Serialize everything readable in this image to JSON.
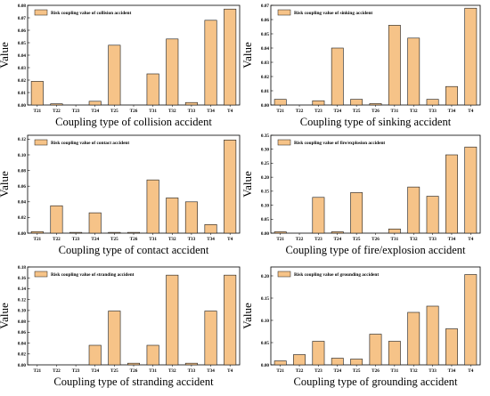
{
  "style": {
    "bar_fill": "#f6c388",
    "bar_stroke": "#1a1a1a",
    "axis_color": "#000000",
    "legend_fill": "#f6c388"
  },
  "chart_data": [
    {
      "type": "bar",
      "categories": [
        "T21",
        "T22",
        "T23",
        "T24",
        "T25",
        "T26",
        "T31",
        "T32",
        "T33",
        "T34",
        "T4"
      ],
      "values": [
        0.019,
        0.001,
        0,
        0.003,
        0.048,
        0,
        0.025,
        0.053,
        0.002,
        0.068,
        0.077
      ],
      "legend": "Risk coupling value of collision accident",
      "xlabel": "Coupling type of collision accident",
      "ylabel": "Value",
      "ylim": [
        0,
        0.08
      ],
      "yticks": [
        "0.00",
        "0.01",
        "0.02",
        "0.03",
        "0.04",
        "0.05",
        "0.06",
        "0.07",
        "0.08"
      ]
    },
    {
      "type": "bar",
      "categories": [
        "T21",
        "T22",
        "T23",
        "T24",
        "T25",
        "T26",
        "T31",
        "T32",
        "T33",
        "T34",
        "T4"
      ],
      "values": [
        0.004,
        0,
        0.003,
        0.04,
        0.004,
        0.001,
        0.056,
        0.047,
        0.004,
        0.013,
        0.068
      ],
      "legend": "Risk coupling value of sinking accident",
      "xlabel": "Coupling type of sinking accident",
      "ylabel": "Value",
      "ylim": [
        0,
        0.07
      ],
      "yticks": [
        "0.00",
        "0.01",
        "0.02",
        "0.03",
        "0.04",
        "0.05",
        "0.06",
        "0.07"
      ]
    },
    {
      "type": "bar",
      "categories": [
        "T21",
        "T22",
        "T23",
        "T24",
        "T25",
        "T26",
        "T31",
        "T32",
        "T33",
        "T34",
        "T4"
      ],
      "values": [
        0.002,
        0.035,
        0.001,
        0.026,
        0.001,
        0.001,
        0.068,
        0.045,
        0.04,
        0.011,
        0.119
      ],
      "legend": "Risk coupling value of contact accident",
      "xlabel": "Coupling type of contact accident",
      "ylabel": "Value",
      "ylim": [
        0,
        0.125
      ],
      "yticks": [
        "0.00",
        "0.02",
        "0.04",
        "0.06",
        "0.08",
        "0.10",
        "0.12"
      ]
    },
    {
      "type": "bar",
      "categories": [
        "T21",
        "T22",
        "T23",
        "T24",
        "T25",
        "T26",
        "T31",
        "T32",
        "T33",
        "T34",
        "T4"
      ],
      "values": [
        0.005,
        0,
        0.128,
        0.005,
        0.145,
        0,
        0.015,
        0.165,
        0.132,
        0.28,
        0.308
      ],
      "legend": "Risk coupling value of fire/explosion accident",
      "xlabel": "Coupling type of fire/explosion accident",
      "ylabel": "Value",
      "ylim": [
        0,
        0.35
      ],
      "yticks": [
        "0.00",
        "0.05",
        "0.10",
        "0.15",
        "0.20",
        "0.25",
        "0.30",
        "0.35"
      ]
    },
    {
      "type": "bar",
      "categories": [
        "T21",
        "T22",
        "T23",
        "T24",
        "T25",
        "T26",
        "T31",
        "T32",
        "T33",
        "T34",
        "T4"
      ],
      "values": [
        0,
        0,
        0,
        0.036,
        0.099,
        0.003,
        0.036,
        0.165,
        0.003,
        0.099,
        0.165
      ],
      "legend": "Risk coupling value of stranding accident",
      "xlabel": "Coupling type of stranding accident",
      "ylabel": "Value",
      "ylim": [
        0,
        0.18
      ],
      "yticks": [
        "0.00",
        "0.02",
        "0.04",
        "0.06",
        "0.08",
        "0.10",
        "0.12",
        "0.14",
        "0.16",
        "0.18"
      ]
    },
    {
      "type": "bar",
      "categories": [
        "T21",
        "T22",
        "T23",
        "T24",
        "T25",
        "T26",
        "T31",
        "T32",
        "T33",
        "T34",
        "T4"
      ],
      "values": [
        0.009,
        0.023,
        0.053,
        0.015,
        0.013,
        0.069,
        0.053,
        0.118,
        0.132,
        0.081,
        0.203
      ],
      "legend": "Risk coupling value of grounding accident",
      "xlabel": "Coupling type of grounding accident",
      "ylabel": "Value",
      "ylim": [
        0,
        0.22
      ],
      "yticks": [
        "0.00",
        "0.05",
        "0.10",
        "0.15",
        "0.20"
      ]
    }
  ]
}
